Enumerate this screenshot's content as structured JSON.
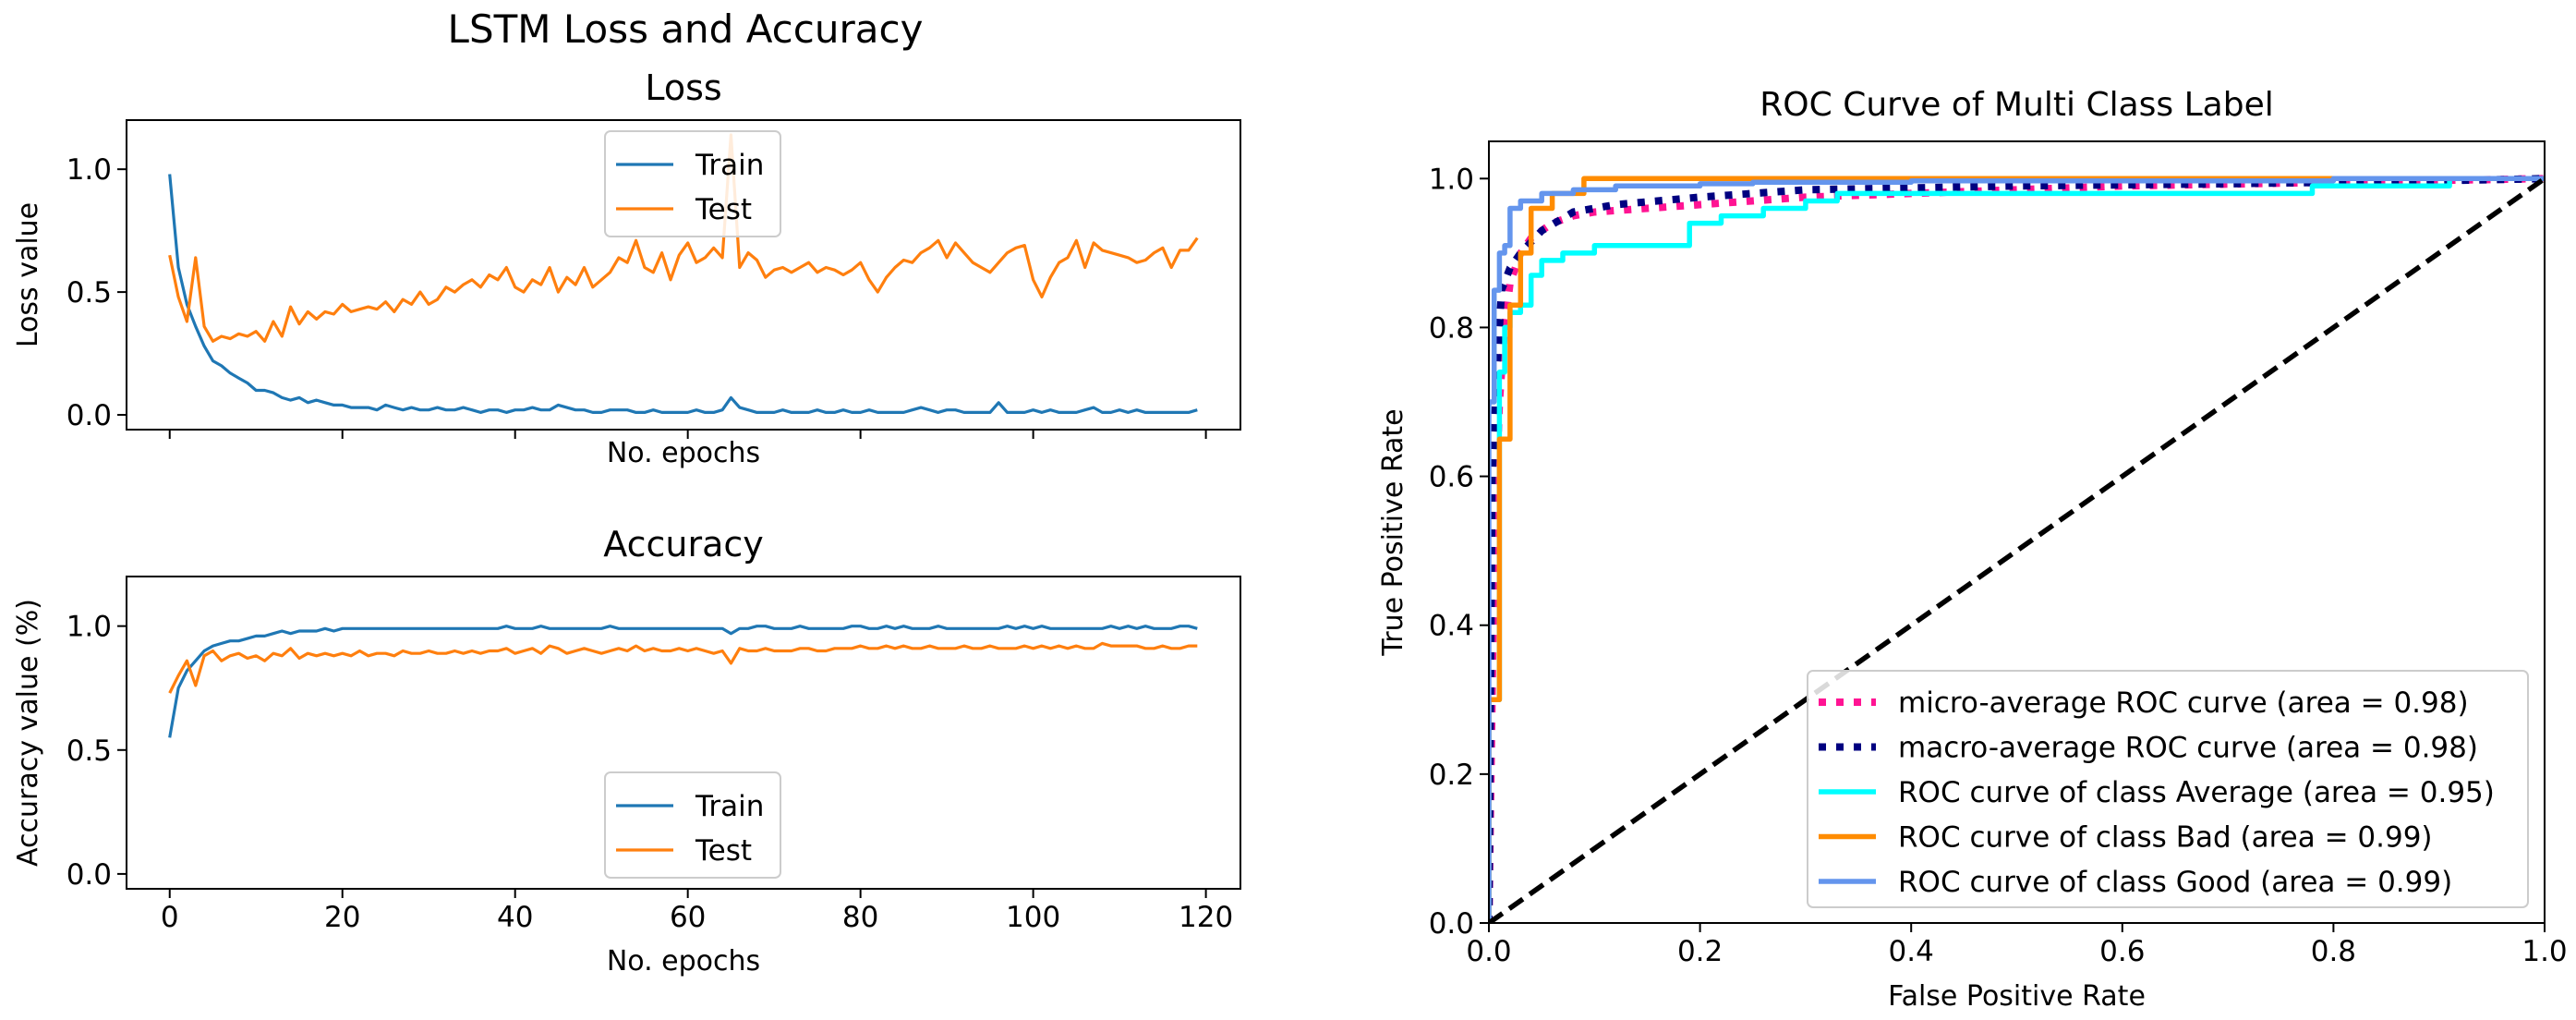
{
  "figure": {
    "suptitle": "LSTM Loss and Accuracy"
  },
  "chart_data": [
    {
      "id": "loss",
      "type": "line",
      "title": "Loss",
      "xlabel": "No. epochs",
      "ylabel": "Loss value",
      "xlim": [
        -5,
        124
      ],
      "ylim": [
        -0.06,
        1.2
      ],
      "xticks": [
        0,
        20,
        40,
        60,
        80,
        100,
        120
      ],
      "yticks": [
        0.0,
        0.5,
        1.0
      ],
      "ytick_labels": [
        "0.0",
        "0.5",
        "1.0"
      ],
      "show_xtick_labels": false,
      "legend": {
        "position": "upper center",
        "entries": [
          "Train",
          "Test"
        ]
      },
      "series": [
        {
          "name": "Train",
          "color": "#1f77b4",
          "values": [
            0.98,
            0.6,
            0.45,
            0.36,
            0.28,
            0.22,
            0.2,
            0.17,
            0.15,
            0.13,
            0.1,
            0.1,
            0.09,
            0.07,
            0.06,
            0.07,
            0.05,
            0.06,
            0.05,
            0.04,
            0.04,
            0.03,
            0.03,
            0.03,
            0.02,
            0.04,
            0.03,
            0.02,
            0.03,
            0.02,
            0.02,
            0.03,
            0.02,
            0.02,
            0.03,
            0.02,
            0.01,
            0.02,
            0.02,
            0.01,
            0.02,
            0.02,
            0.03,
            0.02,
            0.02,
            0.04,
            0.03,
            0.02,
            0.02,
            0.01,
            0.01,
            0.02,
            0.02,
            0.02,
            0.01,
            0.01,
            0.02,
            0.01,
            0.01,
            0.01,
            0.01,
            0.02,
            0.01,
            0.01,
            0.02,
            0.07,
            0.03,
            0.02,
            0.01,
            0.01,
            0.01,
            0.02,
            0.01,
            0.01,
            0.01,
            0.02,
            0.01,
            0.01,
            0.02,
            0.01,
            0.01,
            0.02,
            0.01,
            0.01,
            0.01,
            0.01,
            0.02,
            0.03,
            0.02,
            0.01,
            0.02,
            0.02,
            0.01,
            0.01,
            0.01,
            0.01,
            0.05,
            0.01,
            0.01,
            0.01,
            0.02,
            0.01,
            0.02,
            0.01,
            0.01,
            0.01,
            0.02,
            0.03,
            0.01,
            0.01,
            0.02,
            0.01,
            0.02,
            0.01,
            0.01,
            0.01,
            0.01,
            0.01,
            0.01,
            0.02
          ]
        },
        {
          "name": "Test",
          "color": "#ff7f0e",
          "values": [
            0.65,
            0.48,
            0.38,
            0.64,
            0.36,
            0.3,
            0.32,
            0.31,
            0.33,
            0.32,
            0.34,
            0.3,
            0.38,
            0.32,
            0.44,
            0.37,
            0.42,
            0.39,
            0.42,
            0.41,
            0.45,
            0.42,
            0.43,
            0.44,
            0.43,
            0.46,
            0.42,
            0.47,
            0.45,
            0.5,
            0.45,
            0.47,
            0.52,
            0.5,
            0.53,
            0.55,
            0.52,
            0.57,
            0.55,
            0.6,
            0.52,
            0.5,
            0.55,
            0.53,
            0.6,
            0.5,
            0.56,
            0.53,
            0.6,
            0.52,
            0.55,
            0.58,
            0.64,
            0.62,
            0.71,
            0.6,
            0.58,
            0.66,
            0.55,
            0.65,
            0.7,
            0.62,
            0.64,
            0.68,
            0.64,
            1.14,
            0.6,
            0.66,
            0.63,
            0.56,
            0.59,
            0.6,
            0.58,
            0.6,
            0.62,
            0.58,
            0.6,
            0.59,
            0.57,
            0.59,
            0.62,
            0.55,
            0.5,
            0.56,
            0.6,
            0.63,
            0.62,
            0.66,
            0.68,
            0.71,
            0.64,
            0.7,
            0.66,
            0.62,
            0.6,
            0.58,
            0.62,
            0.66,
            0.68,
            0.69,
            0.55,
            0.48,
            0.56,
            0.62,
            0.64,
            0.71,
            0.6,
            0.7,
            0.67,
            0.66,
            0.65,
            0.64,
            0.62,
            0.63,
            0.66,
            0.68,
            0.6,
            0.67,
            0.67,
            0.72
          ]
        }
      ]
    },
    {
      "id": "accuracy",
      "type": "line",
      "title": "Accuracy",
      "xlabel": "No. epochs",
      "ylabel": "Accuracy value (%)",
      "xlim": [
        -5,
        124
      ],
      "ylim": [
        -0.06,
        1.2
      ],
      "xticks": [
        0,
        20,
        40,
        60,
        80,
        100,
        120
      ],
      "xtick_labels": [
        "0",
        "20",
        "40",
        "60",
        "80",
        "100",
        "120"
      ],
      "yticks": [
        0.0,
        0.5,
        1.0
      ],
      "ytick_labels": [
        "0.0",
        "0.5",
        "1.0"
      ],
      "show_xtick_labels": true,
      "legend": {
        "position": "lower center",
        "entries": [
          "Train",
          "Test"
        ]
      },
      "series": [
        {
          "name": "Train",
          "color": "#1f77b4",
          "values": [
            0.55,
            0.75,
            0.82,
            0.86,
            0.9,
            0.92,
            0.93,
            0.94,
            0.94,
            0.95,
            0.96,
            0.96,
            0.97,
            0.98,
            0.97,
            0.98,
            0.98,
            0.98,
            0.99,
            0.98,
            0.99,
            0.99,
            0.99,
            0.99,
            0.99,
            0.99,
            0.99,
            0.99,
            0.99,
            0.99,
            0.99,
            0.99,
            0.99,
            0.99,
            0.99,
            0.99,
            0.99,
            0.99,
            0.99,
            1.0,
            0.99,
            0.99,
            0.99,
            1.0,
            0.99,
            0.99,
            0.99,
            0.99,
            0.99,
            0.99,
            0.99,
            1.0,
            0.99,
            0.99,
            0.99,
            0.99,
            0.99,
            0.99,
            0.99,
            0.99,
            0.99,
            0.99,
            0.99,
            0.99,
            0.99,
            0.97,
            0.99,
            0.99,
            1.0,
            1.0,
            0.99,
            0.99,
            0.99,
            1.0,
            0.99,
            0.99,
            0.99,
            0.99,
            0.99,
            1.0,
            1.0,
            0.99,
            0.99,
            1.0,
            0.99,
            1.0,
            0.99,
            0.99,
            0.99,
            1.0,
            0.99,
            0.99,
            0.99,
            0.99,
            0.99,
            0.99,
            0.99,
            1.0,
            0.99,
            1.0,
            0.99,
            1.0,
            0.99,
            0.99,
            0.99,
            0.99,
            0.99,
            0.99,
            0.99,
            1.0,
            0.99,
            1.0,
            0.99,
            1.0,
            0.99,
            0.99,
            0.99,
            1.0,
            1.0,
            0.99
          ]
        },
        {
          "name": "Test",
          "color": "#ff7f0e",
          "values": [
            0.73,
            0.8,
            0.86,
            0.76,
            0.88,
            0.9,
            0.86,
            0.88,
            0.89,
            0.87,
            0.88,
            0.86,
            0.89,
            0.88,
            0.91,
            0.87,
            0.89,
            0.88,
            0.89,
            0.88,
            0.89,
            0.88,
            0.9,
            0.88,
            0.89,
            0.89,
            0.88,
            0.9,
            0.89,
            0.89,
            0.9,
            0.89,
            0.89,
            0.9,
            0.89,
            0.9,
            0.89,
            0.9,
            0.9,
            0.91,
            0.89,
            0.9,
            0.91,
            0.89,
            0.92,
            0.91,
            0.89,
            0.9,
            0.91,
            0.9,
            0.89,
            0.9,
            0.91,
            0.9,
            0.92,
            0.9,
            0.91,
            0.9,
            0.9,
            0.91,
            0.9,
            0.91,
            0.9,
            0.89,
            0.9,
            0.85,
            0.91,
            0.9,
            0.9,
            0.91,
            0.9,
            0.9,
            0.9,
            0.91,
            0.91,
            0.9,
            0.9,
            0.91,
            0.91,
            0.91,
            0.92,
            0.91,
            0.91,
            0.92,
            0.91,
            0.92,
            0.91,
            0.91,
            0.92,
            0.91,
            0.91,
            0.91,
            0.92,
            0.91,
            0.91,
            0.92,
            0.91,
            0.91,
            0.91,
            0.92,
            0.91,
            0.92,
            0.91,
            0.92,
            0.91,
            0.92,
            0.91,
            0.91,
            0.93,
            0.92,
            0.92,
            0.92,
            0.92,
            0.91,
            0.91,
            0.92,
            0.91,
            0.91,
            0.92,
            0.92
          ]
        }
      ]
    },
    {
      "id": "roc",
      "type": "line",
      "title": "ROC Curve of Multi Class Label",
      "xlabel": "False Positive Rate",
      "ylabel": "True Positive Rate",
      "xlim": [
        0.0,
        1.0
      ],
      "ylim": [
        0.0,
        1.05
      ],
      "xticks": [
        0.0,
        0.2,
        0.4,
        0.6,
        0.8,
        1.0
      ],
      "xtick_labels": [
        "0.0",
        "0.2",
        "0.4",
        "0.6",
        "0.8",
        "1.0"
      ],
      "yticks": [
        0.0,
        0.2,
        0.4,
        0.6,
        0.8,
        1.0
      ],
      "ytick_labels": [
        "0.0",
        "0.2",
        "0.4",
        "0.6",
        "0.8",
        "1.0"
      ],
      "legend": {
        "position": "lower right"
      },
      "series": [
        {
          "name": "micro-average ROC curve (area = 0.98)",
          "color": "#ff1493",
          "style": "dotted",
          "x": [
            0,
            0.005,
            0.01,
            0.015,
            0.02,
            0.03,
            0.04,
            0.06,
            0.08,
            0.1,
            0.15,
            0.2,
            0.3,
            0.4,
            0.6,
            0.8,
            1.0
          ],
          "y": [
            0,
            0.5,
            0.7,
            0.8,
            0.86,
            0.9,
            0.92,
            0.94,
            0.95,
            0.955,
            0.96,
            0.965,
            0.975,
            0.98,
            0.99,
            0.995,
            1.0
          ]
        },
        {
          "name": "macro-average ROC curve (area = 0.98)",
          "color": "#000080",
          "style": "dotted",
          "x": [
            0,
            0.003,
            0.008,
            0.012,
            0.02,
            0.03,
            0.05,
            0.08,
            0.12,
            0.2,
            0.3,
            0.5,
            0.7,
            0.9,
            1.0
          ],
          "y": [
            0,
            0.6,
            0.75,
            0.85,
            0.88,
            0.9,
            0.93,
            0.955,
            0.965,
            0.975,
            0.985,
            0.99,
            0.993,
            0.997,
            1.0
          ]
        },
        {
          "name": "ROC curve of class Average (area = 0.95)",
          "color": "#00ffff",
          "style": "solid",
          "x": [
            0,
            0,
            0.01,
            0.01,
            0.015,
            0.015,
            0.02,
            0.02,
            0.03,
            0.03,
            0.04,
            0.04,
            0.05,
            0.05,
            0.07,
            0.07,
            0.1,
            0.1,
            0.19,
            0.19,
            0.22,
            0.22,
            0.26,
            0.26,
            0.3,
            0.3,
            0.33,
            0.33,
            0.78,
            0.78,
            0.91,
            0.91,
            1.0
          ],
          "y": [
            0,
            0.3,
            0.3,
            0.74,
            0.74,
            0.8,
            0.8,
            0.82,
            0.82,
            0.83,
            0.83,
            0.87,
            0.87,
            0.89,
            0.89,
            0.9,
            0.9,
            0.91,
            0.91,
            0.94,
            0.94,
            0.95,
            0.95,
            0.96,
            0.96,
            0.97,
            0.97,
            0.98,
            0.98,
            0.99,
            0.99,
            1.0,
            1.0
          ]
        },
        {
          "name": "ROC curve of class Bad (area = 0.99)",
          "color": "#ff8c00",
          "style": "solid",
          "x": [
            0,
            0,
            0.01,
            0.01,
            0.02,
            0.02,
            0.03,
            0.03,
            0.04,
            0.04,
            0.06,
            0.06,
            0.09,
            0.09,
            1.0
          ],
          "y": [
            0,
            0.3,
            0.3,
            0.65,
            0.65,
            0.83,
            0.83,
            0.9,
            0.9,
            0.96,
            0.96,
            0.98,
            0.98,
            1.0,
            1.0
          ]
        },
        {
          "name": "ROC curve of class Good (area = 0.99)",
          "color": "#6495ed",
          "style": "solid",
          "x": [
            0,
            0,
            0.005,
            0.005,
            0.01,
            0.01,
            0.015,
            0.015,
            0.02,
            0.02,
            0.03,
            0.03,
            0.05,
            0.05,
            0.08,
            0.08,
            0.12,
            0.12,
            0.2,
            0.2,
            0.25,
            0.25,
            0.4,
            0.4,
            0.8,
            0.8,
            1.0
          ],
          "y": [
            0,
            0.7,
            0.7,
            0.85,
            0.85,
            0.9,
            0.9,
            0.91,
            0.91,
            0.96,
            0.96,
            0.97,
            0.97,
            0.98,
            0.98,
            0.985,
            0.985,
            0.99,
            0.99,
            0.993,
            0.993,
            0.995,
            0.995,
            0.997,
            0.997,
            1.0,
            1.0
          ]
        },
        {
          "name": "diagonal",
          "color": "#000000",
          "style": "dashed",
          "in_legend": false,
          "x": [
            0,
            1
          ],
          "y": [
            0,
            1
          ]
        }
      ]
    }
  ]
}
